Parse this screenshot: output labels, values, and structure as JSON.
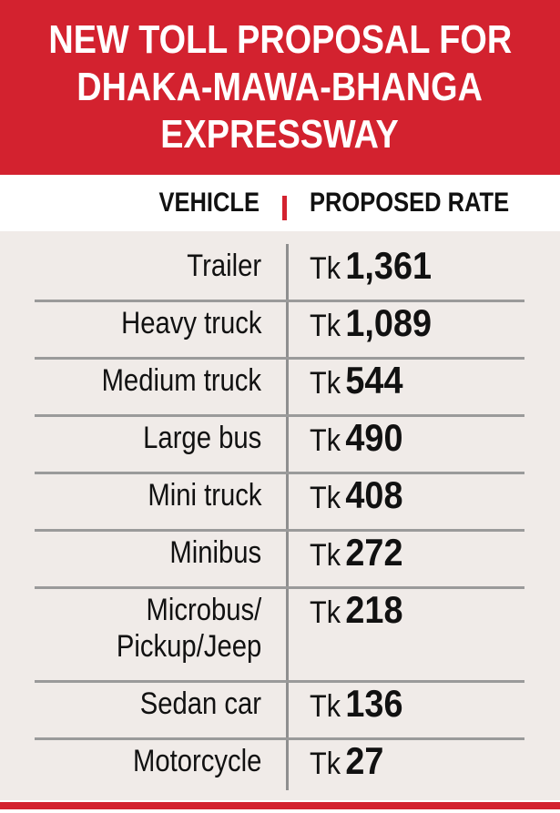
{
  "title_lines": [
    "NEW TOLL PROPOSAL FOR",
    "DHAKA-MAWA-BHANGA",
    "EXPRESSWAY"
  ],
  "columns": {
    "vehicle": "VEHICLE",
    "rate": "PROPOSED RATE"
  },
  "currency": "Tk",
  "colors": {
    "accent": "#d3222f",
    "table_bg": "#f0ebe8",
    "rule": "#9a9a9a"
  },
  "chart_data": {
    "type": "table",
    "title": "NEW TOLL PROPOSAL FOR DHAKA-MAWA-BHANGA EXPRESSWAY",
    "columns": [
      "VEHICLE",
      "PROPOSED RATE"
    ],
    "rows": [
      {
        "vehicle": [
          "Trailer"
        ],
        "amount": "1,361",
        "value": 1361
      },
      {
        "vehicle": [
          "Heavy truck"
        ],
        "amount": "1,089",
        "value": 1089
      },
      {
        "vehicle": [
          "Medium truck"
        ],
        "amount": "544",
        "value": 544
      },
      {
        "vehicle": [
          "Large bus"
        ],
        "amount": "490",
        "value": 490
      },
      {
        "vehicle": [
          "Mini truck"
        ],
        "amount": "408",
        "value": 408
      },
      {
        "vehicle": [
          "Minibus"
        ],
        "amount": "272",
        "value": 272
      },
      {
        "vehicle": [
          "Microbus/",
          "Pickup/Jeep"
        ],
        "amount": "218",
        "value": 218
      },
      {
        "vehicle": [
          "Sedan car"
        ],
        "amount": "136",
        "value": 136
      },
      {
        "vehicle": [
          "Motorcycle"
        ],
        "amount": "27",
        "value": 27
      }
    ]
  }
}
